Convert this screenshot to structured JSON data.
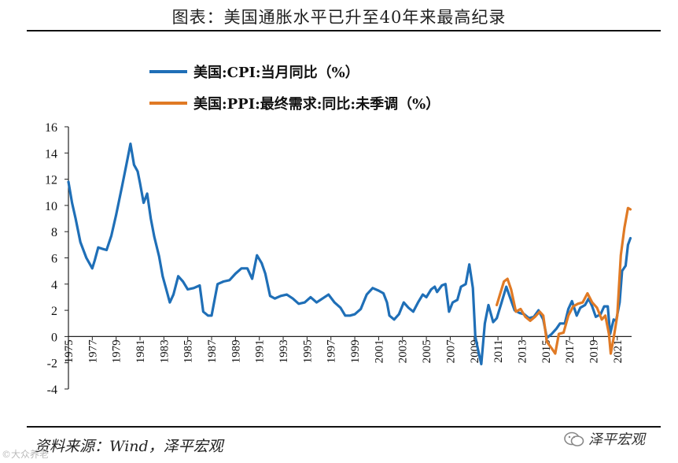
{
  "header": {
    "title": "图表：美国通胀水平已升至40年来最高纪录"
  },
  "footer": {
    "source": "资料来源：Wind，泽平宏观",
    "brand": "泽平宏观",
    "watermark": "©大众养老"
  },
  "colors": {
    "cpi": "#1f6fb7",
    "ppi": "#e07a25",
    "axis": "#222222"
  },
  "chart_data": {
    "type": "line",
    "title": "图表：美国通胀水平已升至40年来最高纪录",
    "xlabel": "",
    "ylabel": "",
    "xlim": [
      1975,
      2022.2
    ],
    "ylim": [
      -4,
      16
    ],
    "yticks": [
      -4,
      -2,
      0,
      2,
      4,
      6,
      8,
      10,
      12,
      14,
      16
    ],
    "xticks": [
      1975,
      1977,
      1979,
      1981,
      1983,
      1985,
      1987,
      1989,
      1991,
      1993,
      1995,
      1997,
      1999,
      2001,
      2003,
      2005,
      2007,
      2009,
      2011,
      2013,
      2015,
      2017,
      2019,
      2021
    ],
    "legend_position": "top-left",
    "grid": false,
    "series": [
      {
        "name": "美国:CPI:当月同比（%）",
        "color": "#1f6fb7",
        "x": [
          1975.0,
          1975.3,
          1975.6,
          1976.0,
          1976.5,
          1977.0,
          1977.2,
          1977.5,
          1977.8,
          1978.2,
          1978.6,
          1979.0,
          1979.5,
          1979.9,
          1980.2,
          1980.5,
          1980.8,
          1981.0,
          1981.3,
          1981.6,
          1981.9,
          1982.2,
          1982.6,
          1982.9,
          1983.2,
          1983.5,
          1983.8,
          1984.2,
          1984.6,
          1985.0,
          1985.5,
          1986.0,
          1986.3,
          1986.7,
          1987.0,
          1987.5,
          1988.0,
          1988.5,
          1989.0,
          1989.5,
          1990.0,
          1990.4,
          1990.8,
          1991.2,
          1991.5,
          1991.9,
          1992.3,
          1992.8,
          1993.3,
          1993.8,
          1994.3,
          1994.8,
          1995.3,
          1995.8,
          1996.3,
          1996.8,
          1997.3,
          1997.8,
          1998.2,
          1998.6,
          1999.0,
          1999.5,
          2000.0,
          2000.5,
          2001.0,
          2001.4,
          2001.7,
          2001.9,
          2002.3,
          2002.7,
          2003.1,
          2003.5,
          2003.9,
          2004.3,
          2004.7,
          2005.0,
          2005.4,
          2005.7,
          2005.9,
          2006.3,
          2006.6,
          2006.9,
          2007.2,
          2007.6,
          2007.9,
          2008.3,
          2008.6,
          2008.9,
          2009.1,
          2009.4,
          2009.6,
          2009.9,
          2010.2,
          2010.6,
          2010.9,
          2011.3,
          2011.7,
          2012.0,
          2012.4,
          2012.8,
          2013.2,
          2013.6,
          2014.0,
          2014.4,
          2014.8,
          2015.1,
          2015.5,
          2015.9,
          2016.2,
          2016.6,
          2016.9,
          2017.2,
          2017.6,
          2017.9,
          2018.3,
          2018.6,
          2018.9,
          2019.2,
          2019.6,
          2019.9,
          2020.2,
          2020.4,
          2020.7,
          2020.9,
          2021.2,
          2021.4,
          2021.7,
          2021.9,
          2022.1
        ],
        "values": [
          11.8,
          10.2,
          9.0,
          7.2,
          6.0,
          5.2,
          5.8,
          6.8,
          6.7,
          6.6,
          7.7,
          9.3,
          11.5,
          13.3,
          14.7,
          13.1,
          12.6,
          11.7,
          10.2,
          10.9,
          9.0,
          7.6,
          6.1,
          4.6,
          3.6,
          2.6,
          3.2,
          4.6,
          4.2,
          3.6,
          3.7,
          3.9,
          1.9,
          1.6,
          1.6,
          4.0,
          4.2,
          4.3,
          4.8,
          5.2,
          5.2,
          4.4,
          6.2,
          5.6,
          4.8,
          3.1,
          2.9,
          3.1,
          3.2,
          2.9,
          2.5,
          2.6,
          3.0,
          2.6,
          2.9,
          3.2,
          2.6,
          2.2,
          1.6,
          1.6,
          1.7,
          2.1,
          3.2,
          3.7,
          3.5,
          3.3,
          2.6,
          1.6,
          1.3,
          1.7,
          2.6,
          2.2,
          1.9,
          2.6,
          3.2,
          3.0,
          3.6,
          3.8,
          3.4,
          3.9,
          4.0,
          1.9,
          2.6,
          2.8,
          3.8,
          4.0,
          5.5,
          3.7,
          0.0,
          -1.3,
          -2.1,
          1.0,
          2.4,
          1.1,
          1.4,
          2.6,
          3.8,
          3.0,
          2.0,
          1.8,
          1.7,
          1.4,
          1.5,
          2.0,
          1.3,
          -0.1,
          0.2,
          0.6,
          1.0,
          1.0,
          2.1,
          2.7,
          1.6,
          2.2,
          2.4,
          2.9,
          2.3,
          1.5,
          1.7,
          2.3,
          2.3,
          0.2,
          1.3,
          1.2,
          2.6,
          5.0,
          5.4,
          7.0,
          7.5
        ]
      },
      {
        "name": "美国:PPI:最终需求:同比:未季调（%）",
        "color": "#e07a25",
        "x": [
          2010.9,
          2011.2,
          2011.5,
          2011.8,
          2012.1,
          2012.5,
          2012.9,
          2013.3,
          2013.7,
          2014.1,
          2014.5,
          2014.8,
          2015.1,
          2015.5,
          2015.8,
          2016.1,
          2016.5,
          2016.9,
          2017.3,
          2017.7,
          2018.1,
          2018.5,
          2018.9,
          2019.3,
          2019.7,
          2020.0,
          2020.3,
          2020.45,
          2020.7,
          2021.0,
          2021.3,
          2021.6,
          2021.9,
          2022.1
        ],
        "values": [
          2.4,
          3.3,
          4.2,
          4.4,
          3.6,
          1.9,
          2.1,
          1.5,
          1.2,
          1.5,
          1.9,
          1.6,
          -0.4,
          -0.9,
          -1.3,
          0.2,
          0.3,
          1.6,
          2.3,
          2.5,
          2.6,
          3.3,
          2.6,
          2.2,
          1.3,
          1.6,
          0.2,
          -1.3,
          -0.1,
          1.6,
          6.2,
          8.3,
          9.8,
          9.7
        ]
      }
    ]
  }
}
